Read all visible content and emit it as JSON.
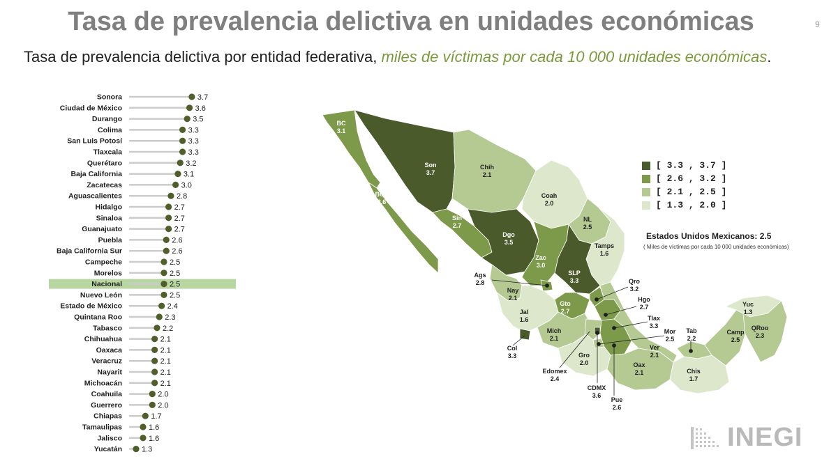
{
  "title": "Tasa de prevalencia delictiva en unidades económicas",
  "slide_number": "9",
  "subtitle": {
    "lead": "Tasa de prevalencia delictiva por entidad federativa,",
    "highlight": "miles de víctimas por cada 10 000 unidades económicas",
    "end": "."
  },
  "colors": {
    "dark": "#4a5a2a",
    "mid": "#7d9a4a",
    "light": "#b5c993",
    "lightest": "#dde7cc",
    "dot": "#4f5e2b",
    "highlight_row": "#b8d6a1"
  },
  "chart_data": {
    "type": "dot",
    "title": "Tasa de prevalencia delictiva por entidad federativa",
    "xlim": [
      0,
      4
    ],
    "highlight": "Nacional",
    "categories": [
      "Sonora",
      "Ciudad de México",
      "Durango",
      "Colima",
      "San Luis Potosí",
      "Tlaxcala",
      "Querétaro",
      "Baja California",
      "Zacatecas",
      "Aguascalientes",
      "Hidalgo",
      "Sinaloa",
      "Guanajuato",
      "Puebla",
      "Baja California Sur",
      "Campeche",
      "Morelos",
      "Nacional",
      "Nuevo León",
      "Estado de México",
      "Quintana Roo",
      "Tabasco",
      "Chihuahua",
      "Oaxaca",
      "Veracruz",
      "Nayarit",
      "Michoacán",
      "Coahuila",
      "Guerrero",
      "Chiapas",
      "Tamaulipas",
      "Jalisco",
      "Yucatán"
    ],
    "values": [
      3.7,
      3.6,
      3.5,
      3.3,
      3.3,
      3.3,
      3.2,
      3.1,
      3.0,
      2.8,
      2.7,
      2.7,
      2.7,
      2.6,
      2.6,
      2.5,
      2.5,
      2.5,
      2.5,
      2.4,
      2.3,
      2.2,
      2.1,
      2.1,
      2.1,
      2.1,
      2.1,
      2.0,
      2.0,
      1.7,
      1.6,
      1.6,
      1.3
    ],
    "value_labels": [
      "3.7",
      "3.6",
      "3.5",
      "3.3",
      "3.3",
      "3.3",
      "3.2",
      "3.1",
      "3.0",
      "2.8",
      "2.7",
      "2.7",
      "2.7",
      "2.6",
      "2.6",
      "2.5",
      "2.5",
      "2.5",
      "2.5",
      "2.4",
      "2.3",
      "2.2",
      "2.1",
      "2.1",
      "2.1",
      "2.1",
      "2.1",
      "2.0",
      "2.0",
      "1.7",
      "1.6",
      "1.6",
      "1.3"
    ]
  },
  "map": {
    "legend": [
      {
        "label": "[ 3.3 , 3.7 ]",
        "class": "dark"
      },
      {
        "label": "[ 2.6 , 3.2 ]",
        "class": "mid"
      },
      {
        "label": "[ 2.1 , 2.5 ]",
        "class": "light"
      },
      {
        "label": "[ 1.3 , 2.0 ]",
        "class": "lightest"
      }
    ],
    "national_label": "Estados Unidos Mexicanos:   2.5",
    "national_note": "( Miles de víctimas por cada 10 000 unidades económicas)",
    "states": [
      {
        "abbr": "BC",
        "value": "3.1",
        "class": "mid"
      },
      {
        "abbr": "BCS",
        "value": "2.6",
        "class": "mid"
      },
      {
        "abbr": "Son",
        "value": "3.7",
        "class": "dark"
      },
      {
        "abbr": "Chih",
        "value": "2.1",
        "class": "light"
      },
      {
        "abbr": "Coah",
        "value": "2.0",
        "class": "lightest"
      },
      {
        "abbr": "NL",
        "value": "2.5",
        "class": "light"
      },
      {
        "abbr": "Tamps",
        "value": "1.6",
        "class": "lightest"
      },
      {
        "abbr": "Sin",
        "value": "2.7",
        "class": "mid"
      },
      {
        "abbr": "Dgo",
        "value": "3.5",
        "class": "dark"
      },
      {
        "abbr": "Zac",
        "value": "3.0",
        "class": "mid"
      },
      {
        "abbr": "SLP",
        "value": "3.3",
        "class": "dark"
      },
      {
        "abbr": "Ags",
        "value": "2.8",
        "class": "mid"
      },
      {
        "abbr": "Nay",
        "value": "2.1",
        "class": "light"
      },
      {
        "abbr": "Jal",
        "value": "1.6",
        "class": "lightest"
      },
      {
        "abbr": "Gto",
        "value": "2.7",
        "class": "mid"
      },
      {
        "abbr": "Qro",
        "value": "3.2",
        "class": "mid"
      },
      {
        "abbr": "Hgo",
        "value": "2.7",
        "class": "mid"
      },
      {
        "abbr": "Tlax",
        "value": "3.3",
        "class": "dark"
      },
      {
        "abbr": "Mor",
        "value": "2.5",
        "class": "light"
      },
      {
        "abbr": "Mich",
        "value": "2.1",
        "class": "light"
      },
      {
        "abbr": "Col",
        "value": "3.3",
        "class": "dark"
      },
      {
        "abbr": "Edomex",
        "value": "2.4",
        "class": "light"
      },
      {
        "abbr": "Gro",
        "value": "2.0",
        "class": "lightest"
      },
      {
        "abbr": "CDMX",
        "value": "3.6",
        "class": "dark"
      },
      {
        "abbr": "Pue",
        "value": "2.6",
        "class": "mid"
      },
      {
        "abbr": "Oax",
        "value": "2.1",
        "class": "light"
      },
      {
        "abbr": "Ver",
        "value": "2.1",
        "class": "light"
      },
      {
        "abbr": "Tab",
        "value": "2.2",
        "class": "light"
      },
      {
        "abbr": "Chis",
        "value": "1.7",
        "class": "lightest"
      },
      {
        "abbr": "Camp",
        "value": "2.5",
        "class": "light"
      },
      {
        "abbr": "Yuc",
        "value": "1.3",
        "class": "lightest"
      },
      {
        "abbr": "QRoo",
        "value": "2.3",
        "class": "light"
      }
    ]
  },
  "logo": {
    "text": "INEGI"
  }
}
